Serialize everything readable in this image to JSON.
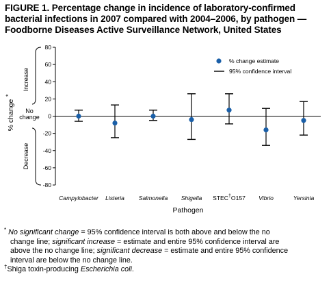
{
  "figure": {
    "title_lines": [
      "FIGURE 1. Percentage change in incidence of laboratory-confirmed",
      "bacterial infections in 2007 compared with 2004–2006, by pathogen —",
      "Foodborne Diseases Active Surveillance Network, United States"
    ]
  },
  "chart_data": {
    "type": "scatter",
    "categories": [
      "Campylobacter",
      "Listeria",
      "Salmonella",
      "Shigella",
      "STEC",
      "Vibrio",
      "Yersinia"
    ],
    "stec_suffix": "O157",
    "stec_marker": "†",
    "estimates": [
      0,
      -8,
      0,
      -4,
      7,
      -16,
      -5
    ],
    "ci_upper": [
      7,
      13,
      7,
      26,
      26,
      9,
      17
    ],
    "ci_lower": [
      -6,
      -25,
      -5,
      -27,
      -9,
      -34,
      -22
    ],
    "ylim": [
      -80,
      80
    ],
    "yticks": [
      80,
      60,
      40,
      20,
      0,
      -20,
      -40,
      -60,
      -80
    ],
    "xlabel": "Pathogen",
    "ylabel": "% change",
    "ylabel_marker": "*",
    "regions": {
      "increase": "Increase",
      "no_change_1": "No",
      "no_change_2": "change",
      "decrease": "Decrease"
    },
    "legend": {
      "estimate": "% change estimate",
      "ci": "95% confidence interval",
      "position": "top-right"
    },
    "colors": {
      "estimate": "#1a5fa8",
      "ci": "#000000"
    }
  },
  "footnotes": {
    "star_marker": "*",
    "star_segments": [
      {
        "text": "No significant change",
        "italic": true
      },
      {
        "text": " = 95% confidence interval is both above and below the no change line; ",
        "italic": false
      },
      {
        "text": "significant increase",
        "italic": true
      },
      {
        "text": " = estimate and entire 95% confidence interval are above the no change line; ",
        "italic": false
      },
      {
        "text": "significant decrease",
        "italic": true
      },
      {
        "text": " = estimate and entire 95% confidence interval are below the no change line.",
        "italic": false
      }
    ],
    "dagger_marker": "†",
    "dagger_prefix": "Shiga toxin-producing ",
    "dagger_species": "Escherichia coli",
    "dagger_end": "."
  }
}
